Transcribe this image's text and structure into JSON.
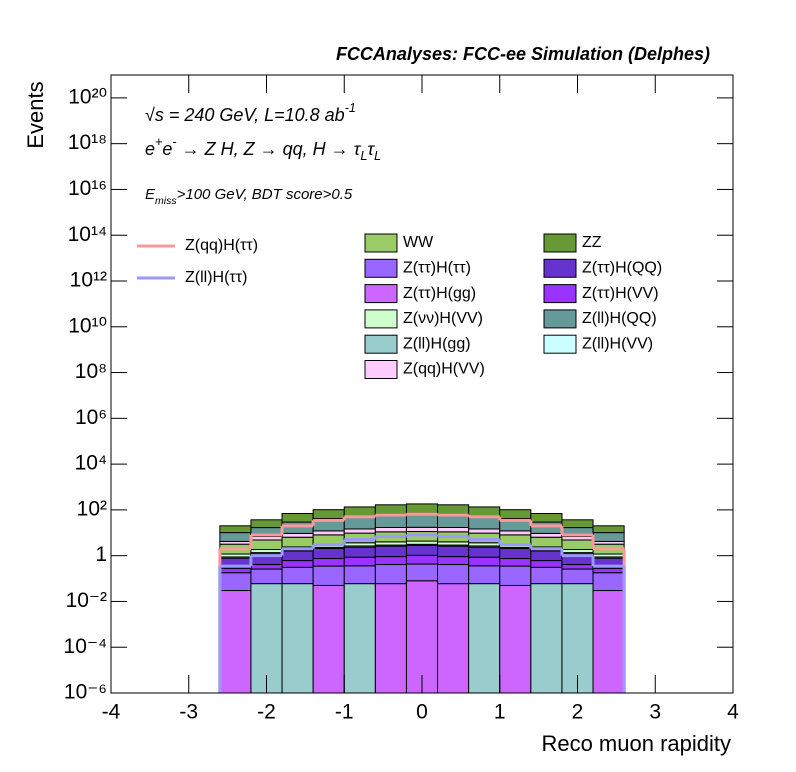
{
  "chart_data": {
    "type": "stacked_histogram",
    "title": "FCCAnalyses: FCC-ee Simulation (Delphes)",
    "annotations": [
      [
        {
          "t": "√s = 240 GeV, L=10.8 ab"
        },
        {
          "t": "-1",
          "pos": "sup"
        }
      ],
      [
        {
          "t": "e"
        },
        {
          "t": "+",
          "pos": "sup"
        },
        {
          "t": "e"
        },
        {
          "t": "-",
          "pos": "sup"
        },
        {
          "t": " → Z H, Z  → qq, H  → τ"
        },
        {
          "t": "L",
          "pos": "sub"
        },
        {
          "t": "τ"
        },
        {
          "t": "L",
          "pos": "sub"
        }
      ],
      [
        {
          "t": "E"
        },
        {
          "t": "miss",
          "pos": "sub"
        },
        {
          "t": ">100 GeV, BDT score>0.5"
        }
      ]
    ],
    "x_label": "Reco muon rapidity",
    "y_label": "Events",
    "log_y": true,
    "bins": [
      -2.6,
      -2.2,
      -1.8,
      -1.4,
      -1.0,
      -0.6,
      -0.2,
      0.2,
      0.6,
      1.0,
      1.4,
      1.8,
      2.2,
      2.6
    ],
    "series": [
      {
        "name": "Z(ll)H(gg)",
        "color": "#99cccc",
        "values": [
          0,
          0.06,
          0.06,
          0,
          0.06,
          0,
          0,
          0,
          0.06,
          0,
          0.06,
          0.06,
          0
        ]
      },
      {
        "name": "Z(ττ)H(gg)",
        "color": "#cc66ff",
        "values": [
          0.03,
          0,
          0,
          0.05,
          0,
          0.06,
          0.08,
          0.06,
          0,
          0.05,
          0,
          0,
          0.03
        ]
      },
      {
        "name": "Z(ττ)H(ττ)",
        "color": "#9966ff",
        "values": [
          0.15,
          0.2,
          0.25,
          0.3,
          0.3,
          0.35,
          0.35,
          0.35,
          0.3,
          0.3,
          0.25,
          0.2,
          0.15
        ]
      },
      {
        "name": "Z(ττ)H(VV)",
        "color": "#9933ff",
        "values": [
          0.1,
          0.15,
          0.3,
          0.4,
          0.5,
          0.5,
          0.6,
          0.5,
          0.5,
          0.4,
          0.3,
          0.15,
          0.1
        ]
      },
      {
        "name": "Z(ττ)H(QQ)",
        "color": "#6633cc",
        "values": [
          0.5,
          0.8,
          1,
          1.3,
          1.5,
          1.7,
          1.8,
          1.7,
          1.5,
          1.3,
          1,
          0.8,
          0.5
        ]
      },
      {
        "name": "Z(ll)H(VV)",
        "color": "#ccffff",
        "values": [
          0.1,
          0.15,
          0.2,
          0.25,
          0.3,
          0.3,
          0.3,
          0.3,
          0.3,
          0.25,
          0.2,
          0.15,
          0.1
        ]
      },
      {
        "name": "Z(νν)H(VV)",
        "color": "#ccffcc",
        "values": [
          0.3,
          0.5,
          0.6,
          0.8,
          1,
          1.1,
          1.2,
          1.1,
          1,
          0.8,
          0.6,
          0.5,
          0.3
        ]
      },
      {
        "name": "WW",
        "color": "#99cc66",
        "values": [
          2,
          3,
          4,
          5,
          6,
          7,
          7,
          7,
          6,
          5,
          4,
          3,
          2
        ]
      },
      {
        "name": "Z(qq)H(VV)",
        "color": "#ffccff",
        "values": [
          1,
          2,
          3,
          4,
          5,
          6,
          6,
          6,
          5,
          4,
          3,
          2,
          1
        ]
      },
      {
        "name": "Z(ll)H(QQ)",
        "color": "#669999",
        "values": [
          6,
          10,
          20,
          30,
          40,
          50,
          55,
          50,
          40,
          30,
          20,
          10,
          6
        ]
      },
      {
        "name": "ZZ",
        "color": "#669933",
        "values": [
          10,
          20,
          40,
          60,
          80,
          100,
          110,
          100,
          80,
          60,
          40,
          20,
          10
        ]
      }
    ],
    "line_series": [
      {
        "name": "Z(qq)H(ττ)",
        "color": "#ff9999",
        "values": [
          2,
          8,
          20,
          35,
          50,
          60,
          65,
          60,
          50,
          35,
          20,
          8,
          2
        ]
      },
      {
        "name": "Z(ll)H(ττ)",
        "color": "#9999ff",
        "values": [
          0.35,
          1,
          2,
          3,
          5,
          7,
          8,
          7,
          5,
          3,
          2,
          1,
          0.35
        ]
      }
    ],
    "xlim": [
      -4,
      4
    ],
    "xticks": [
      -4,
      -3,
      -2,
      -1,
      0,
      1,
      2,
      3,
      4
    ],
    "ylim": [
      1e-06,
      1e+21
    ],
    "yticks": [
      {
        "value": 1e-06,
        "label": "10⁻⁶"
      },
      {
        "value": 0.0001,
        "label": "10⁻⁴"
      },
      {
        "value": 0.01,
        "label": "10⁻²"
      },
      1,
      {
        "value": 100,
        "label": "10²"
      },
      {
        "value": 10000.0,
        "label": "10⁴"
      },
      {
        "value": 1000000.0,
        "label": "10⁶"
      },
      {
        "value": 100000000.0,
        "label": "10⁸"
      },
      {
        "value": 10000000000.0,
        "label": "10¹⁰"
      },
      {
        "value": 1000000000000.0,
        "label": "10¹²"
      },
      {
        "value": 100000000000000.0,
        "label": "10¹⁴"
      },
      {
        "value": 1e+16,
        "label": "10¹⁶"
      },
      {
        "value": 1e+18,
        "label": "10¹⁸"
      },
      {
        "value": 1e+20,
        "label": "10²⁰"
      }
    ]
  }
}
